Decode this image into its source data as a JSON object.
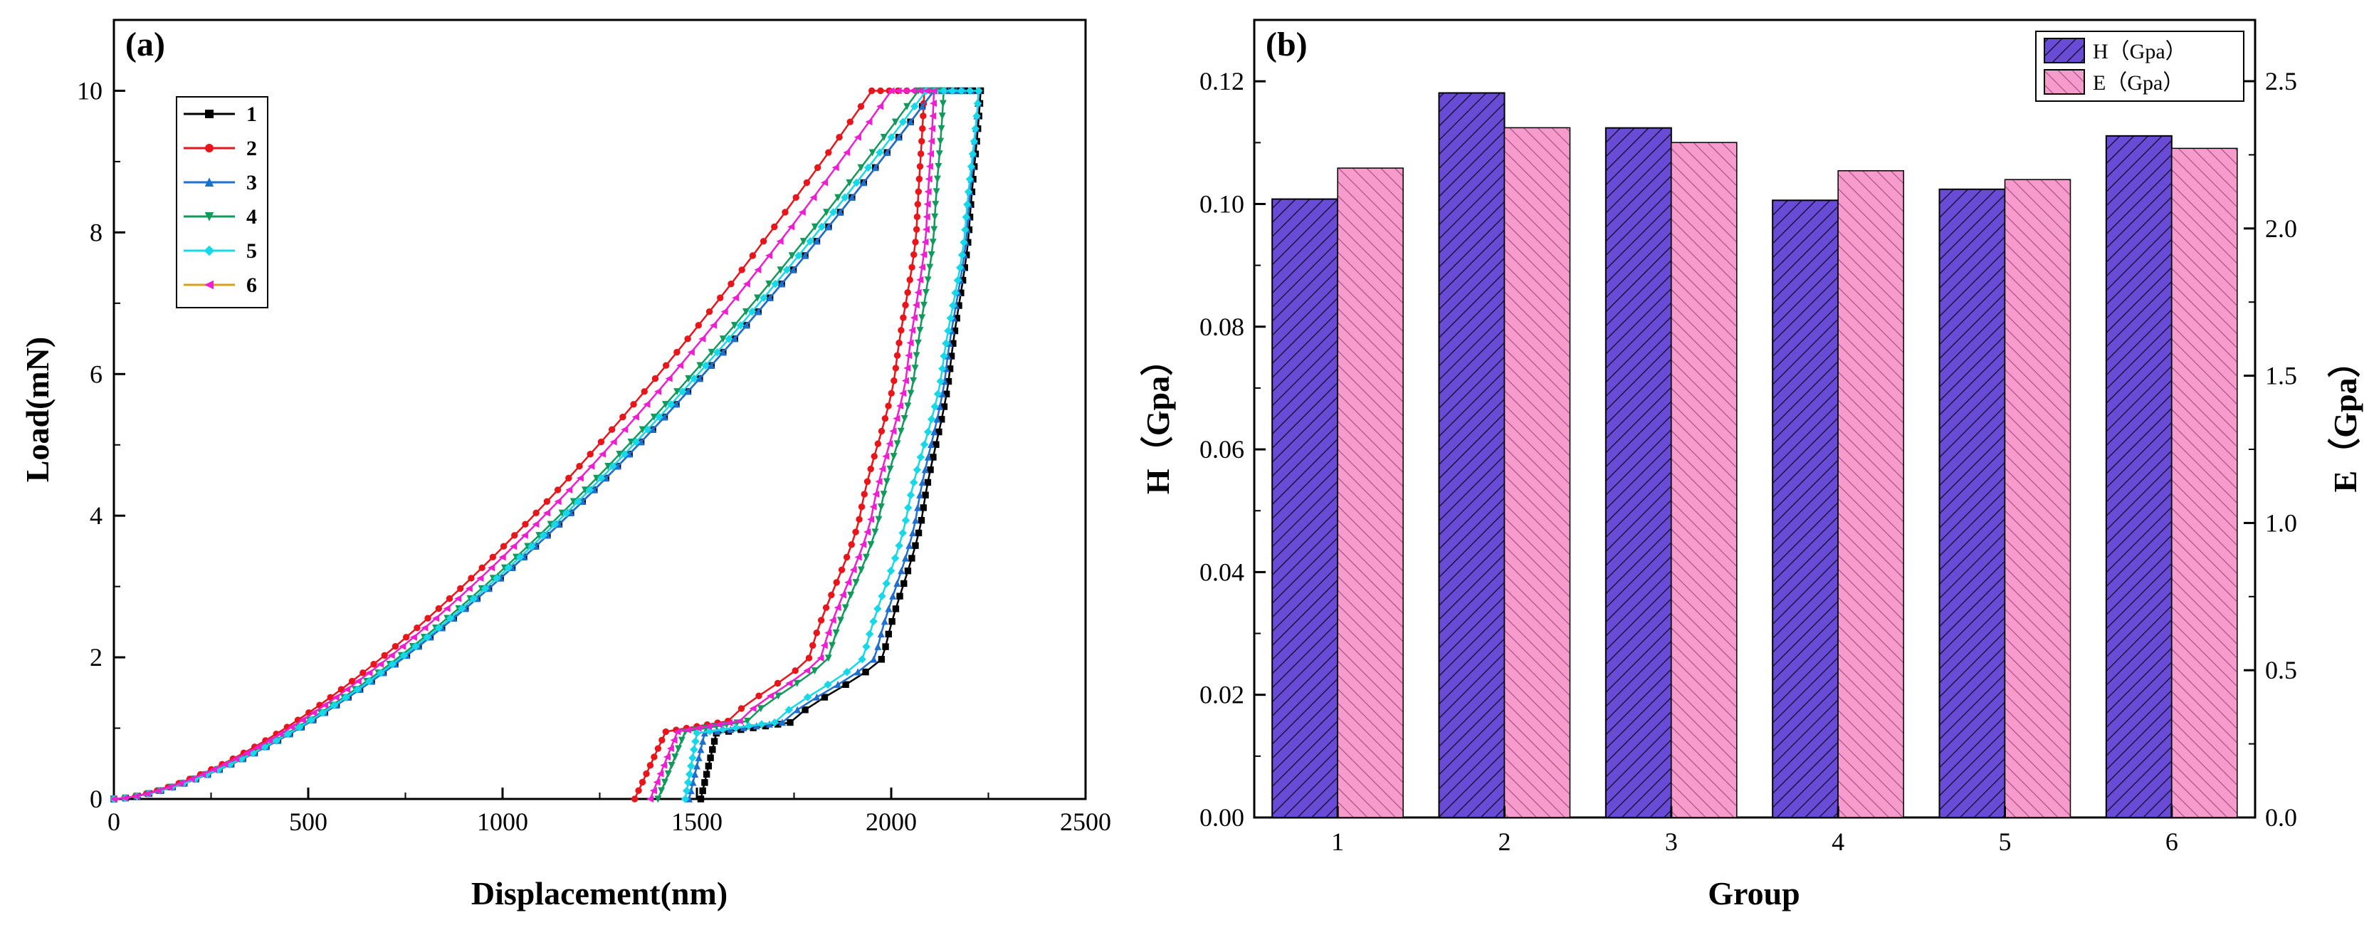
{
  "chart_data": [
    {
      "type": "line",
      "panel_label": "(a)",
      "xlabel": "Displacement(nm)",
      "ylabel": "Load(mN)",
      "xlim": [
        0,
        2500
      ],
      "ylim": [
        0,
        11
      ],
      "xticks": [
        0,
        500,
        1000,
        1500,
        2000,
        2500
      ],
      "xtick_labels": [
        "0",
        "500",
        "1000",
        "1500",
        "2000",
        "2500"
      ],
      "yticks": [
        0,
        2,
        4,
        6,
        8,
        10
      ],
      "ytick_labels": [
        "0",
        "2",
        "4",
        "6",
        "8",
        "10"
      ],
      "legend_position": "top-left",
      "series": [
        {
          "name": "1",
          "color": "#000000",
          "marker": "square",
          "loading_max_x": 2110,
          "hold_end_x": 2230,
          "unloading_curve": [
            [
              2230,
              10
            ],
            [
              2200,
              8
            ],
            [
              2150,
              6
            ],
            [
              2080,
              4
            ],
            [
              1980,
              2
            ],
            [
              1740,
              1.08
            ]
          ],
          "unload_jump_x": 1550,
          "unload_end_x": 1510
        },
        {
          "name": "2",
          "color": "#e8161b",
          "marker": "circle",
          "loading_max_x": 1950,
          "hold_end_x": 2085,
          "unloading_curve": [
            [
              2085,
              10
            ],
            [
              2065,
              8
            ],
            [
              2010,
              6
            ],
            [
              1920,
              4
            ],
            [
              1790,
              2
            ],
            [
              1580,
              1.1
            ]
          ],
          "unload_jump_x": 1420,
          "unload_end_x": 1340
        },
        {
          "name": "3",
          "color": "#1f6fd0",
          "marker": "triangle-up",
          "loading_max_x": 2110,
          "hold_end_x": 2225,
          "unloading_curve": [
            [
              2225,
              10
            ],
            [
              2195,
              8
            ],
            [
              2140,
              6
            ],
            [
              2065,
              4
            ],
            [
              1960,
              2
            ],
            [
              1720,
              1.08
            ]
          ],
          "unload_jump_x": 1520,
          "unload_end_x": 1480
        },
        {
          "name": "4",
          "color": "#129a5c",
          "marker": "triangle-down",
          "loading_max_x": 2070,
          "hold_end_x": 2135,
          "unloading_curve": [
            [
              2135,
              10
            ],
            [
              2110,
              8
            ],
            [
              2060,
              6
            ],
            [
              1970,
              4
            ],
            [
              1840,
              2
            ],
            [
              1630,
              1.1
            ]
          ],
          "unload_jump_x": 1470,
          "unload_end_x": 1400
        },
        {
          "name": "5",
          "color": "#17d8e8",
          "marker": "diamond",
          "loading_max_x": 2090,
          "hold_end_x": 2225,
          "unloading_curve": [
            [
              2225,
              10
            ],
            [
              2190,
              8
            ],
            [
              2130,
              6
            ],
            [
              2040,
              4
            ],
            [
              1930,
              2
            ],
            [
              1700,
              1.08
            ]
          ],
          "unload_jump_x": 1500,
          "unload_end_x": 1470
        },
        {
          "name": "6",
          "color": "#ee1fd0",
          "marker": "triangle-left",
          "loading_max_x": 2000,
          "hold_end_x": 2110,
          "unloading_curve": [
            [
              2110,
              10
            ],
            [
              2090,
              8
            ],
            [
              2040,
              6
            ],
            [
              1950,
              4
            ],
            [
              1820,
              2
            ],
            [
              1610,
              1.1
            ]
          ],
          "unload_jump_x": 1450,
          "unload_end_x": 1380
        }
      ],
      "series6_legend_line_color": "#d4a017"
    },
    {
      "type": "bar",
      "panel_label": "(b)",
      "xlabel": "Group",
      "ylabel": "H（Gpa）",
      "ylabel_right": "E（Gpa）",
      "categories": [
        "1",
        "2",
        "3",
        "4",
        "5",
        "6"
      ],
      "ylim": [
        0,
        0.13
      ],
      "ylim_right": [
        0,
        2.708
      ],
      "yticks": [
        0.0,
        0.02,
        0.04,
        0.06,
        0.08,
        0.1,
        0.12
      ],
      "ytick_labels": [
        "0.00",
        "0.02",
        "0.04",
        "0.06",
        "0.08",
        "0.10",
        "0.12"
      ],
      "yticks_right": [
        0.0,
        0.5,
        1.0,
        1.5,
        2.0,
        2.5
      ],
      "ytick_labels_right": [
        "0.0",
        "0.5",
        "1.0",
        "1.5",
        "2.0",
        "2.5"
      ],
      "legend_position": "top-right",
      "series": [
        {
          "name": "H（Gpa）",
          "axis": "left",
          "color": "#6a4bd6",
          "values": [
            0.1008,
            0.1181,
            0.1124,
            0.1006,
            0.1024,
            0.1111
          ]
        },
        {
          "name": "E（Gpa）",
          "axis": "right",
          "color": "#f59ccc",
          "values": [
            2.205,
            2.342,
            2.292,
            2.196,
            2.166,
            2.272
          ]
        }
      ]
    }
  ]
}
